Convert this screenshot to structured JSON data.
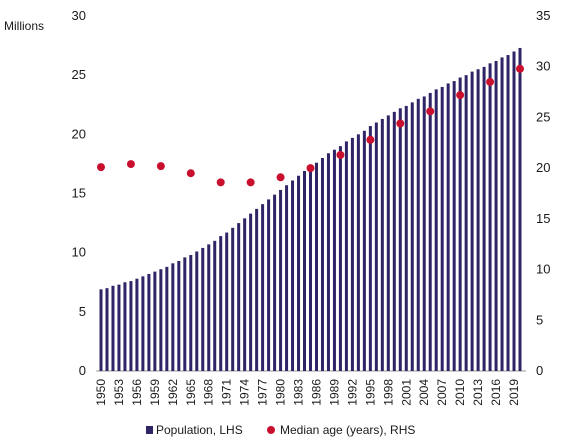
{
  "chart_data": {
    "type": "bar+scatter",
    "left_unit_label": "Millions",
    "left_axis": {
      "min": 0,
      "max": 30,
      "ticks": [
        0,
        5,
        10,
        15,
        20,
        25,
        30
      ]
    },
    "right_axis": {
      "min": 0,
      "max": 35,
      "ticks": [
        0,
        5,
        10,
        15,
        20,
        25,
        30,
        35
      ]
    },
    "x_tick_labels": [
      "1950",
      "1953",
      "1956",
      "1959",
      "1962",
      "1965",
      "1968",
      "1971",
      "1974",
      "1977",
      "1980",
      "1983",
      "1986",
      "1989",
      "1992",
      "1995",
      "1998",
      "2001",
      "2004",
      "2007",
      "2010",
      "2013",
      "2016",
      "2019"
    ],
    "colors": {
      "bars": "#2e2466",
      "points": "#c8102e"
    },
    "series": [
      {
        "name": "Population, LHS",
        "type": "bar",
        "axis": "left",
        "x": [
          1950,
          1951,
          1952,
          1953,
          1954,
          1955,
          1956,
          1957,
          1958,
          1959,
          1960,
          1961,
          1962,
          1963,
          1964,
          1965,
          1966,
          1967,
          1968,
          1969,
          1970,
          1971,
          1972,
          1973,
          1974,
          1975,
          1976,
          1977,
          1978,
          1979,
          1980,
          1981,
          1982,
          1983,
          1984,
          1985,
          1986,
          1987,
          1988,
          1989,
          1990,
          1991,
          1992,
          1993,
          1994,
          1995,
          1996,
          1997,
          1998,
          1999,
          2000,
          2001,
          2002,
          2003,
          2004,
          2005,
          2006,
          2007,
          2008,
          2009,
          2010,
          2011,
          2012,
          2013,
          2014,
          2015,
          2016,
          2017,
          2018,
          2019,
          2020
        ],
        "values": [
          6.9,
          7.0,
          7.2,
          7.3,
          7.5,
          7.6,
          7.8,
          8.0,
          8.2,
          8.4,
          8.6,
          8.8,
          9.1,
          9.3,
          9.6,
          9.8,
          10.1,
          10.4,
          10.7,
          11.0,
          11.4,
          11.7,
          12.1,
          12.5,
          12.9,
          13.3,
          13.7,
          14.1,
          14.5,
          14.9,
          15.3,
          15.7,
          16.1,
          16.5,
          16.9,
          17.3,
          17.6,
          18.0,
          18.4,
          18.7,
          19.0,
          19.4,
          19.7,
          20.0,
          20.3,
          20.7,
          21.0,
          21.3,
          21.6,
          21.9,
          22.2,
          22.4,
          22.7,
          23.0,
          23.2,
          23.5,
          23.8,
          24.0,
          24.3,
          24.5,
          24.8,
          25.0,
          25.3,
          25.5,
          25.7,
          26.0,
          26.2,
          26.5,
          26.7,
          27.0,
          27.3
        ]
      },
      {
        "name": "Median age (years), RHS",
        "type": "scatter",
        "axis": "right",
        "x": [
          1950,
          1955,
          1960,
          1965,
          1970,
          1975,
          1980,
          1985,
          1990,
          1995,
          2000,
          2005,
          2010,
          2015,
          2020
        ],
        "values": [
          20.1,
          20.4,
          20.2,
          19.5,
          18.6,
          18.6,
          19.1,
          20.0,
          21.3,
          22.8,
          24.4,
          25.6,
          27.2,
          28.5,
          29.8
        ]
      }
    ]
  }
}
